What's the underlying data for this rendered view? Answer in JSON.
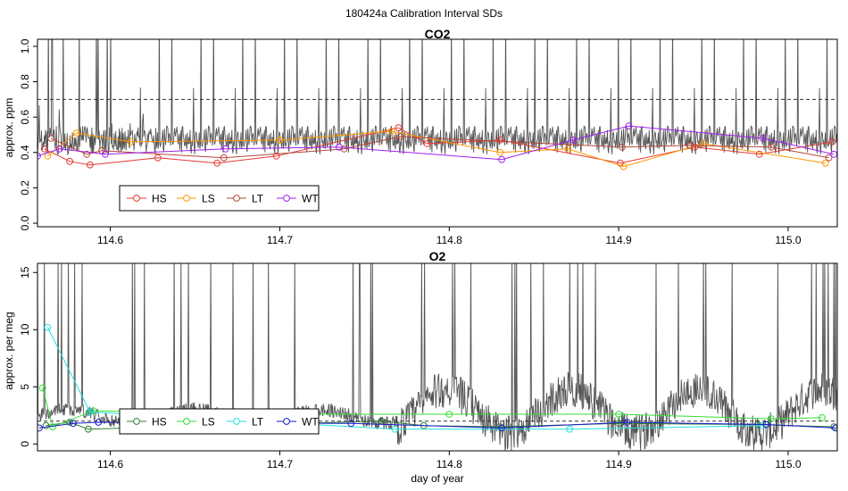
{
  "suptitle": "180424a   Calibration Interval SDs",
  "xlabel": "day of year",
  "colors": {
    "trace": "#555555",
    "ref_line": "#333333",
    "HS_co2": "#e53935",
    "LS_co2": "#ff9800",
    "LT_co2": "#b5473a",
    "WT_co2": "#a020f0",
    "HS_o2": "#2e7d32",
    "LS_o2": "#33dd33",
    "LT_o2": "#22e0e0",
    "WT_o2": "#1a1acc"
  },
  "chart_data": [
    {
      "type": "line",
      "title": "CO2",
      "xlabel": "",
      "ylabel": "approx. ppm",
      "xlim": [
        114.557,
        115.029
      ],
      "ylim": [
        -0.02,
        1.04
      ],
      "xticks": [
        "114.6",
        "114.7",
        "114.8",
        "114.9",
        "115.0"
      ],
      "yticks": [
        "0.0",
        "0.2",
        "0.4",
        "0.6",
        "0.8",
        "1.0"
      ],
      "ref_line": 0.7,
      "legend": "bottom-left",
      "series": [
        {
          "name": "HS",
          "x": [
            114.561,
            114.576,
            114.588,
            114.628,
            114.663,
            114.698,
            114.77,
            114.787,
            114.83,
            114.901,
            114.945,
            114.983,
            115.026
          ],
          "y": [
            0.42,
            0.35,
            0.33,
            0.37,
            0.34,
            0.38,
            0.54,
            0.45,
            0.47,
            0.34,
            0.43,
            0.39,
            0.46
          ]
        },
        {
          "name": "LS",
          "x": [
            114.563,
            114.58,
            114.612,
            114.7,
            114.766,
            114.83,
            114.87,
            114.903,
            114.95,
            115.022
          ],
          "y": [
            0.38,
            0.51,
            0.46,
            0.47,
            0.52,
            0.4,
            0.42,
            0.32,
            0.45,
            0.34
          ]
        },
        {
          "name": "LT",
          "x": [
            114.565,
            114.586,
            114.595,
            114.667,
            114.738,
            114.771,
            114.902,
            114.942,
            114.99,
            115.024
          ],
          "y": [
            0.48,
            0.39,
            0.41,
            0.37,
            0.42,
            0.49,
            0.43,
            0.44,
            0.43,
            0.37
          ]
        },
        {
          "name": "WT",
          "x": [
            114.557,
            114.57,
            114.597,
            114.668,
            114.735,
            114.831,
            114.873,
            114.906,
            114.985,
            115.027
          ],
          "y": [
            0.38,
            0.42,
            0.39,
            0.42,
            0.43,
            0.36,
            0.47,
            0.55,
            0.48,
            0.39
          ]
        }
      ]
    },
    {
      "type": "line",
      "title": "O2",
      "xlabel": "day of year",
      "ylabel": "approx. per meg",
      "xlim": [
        114.557,
        115.029
      ],
      "ylim": [
        -0.6,
        15.8
      ],
      "xticks": [
        "114.6",
        "114.7",
        "114.8",
        "114.9",
        "115.0"
      ],
      "yticks": [
        "0",
        "5",
        "10",
        "15"
      ],
      "ref_line": 2.0,
      "legend": "bottom-left",
      "series": [
        {
          "name": "HS",
          "x": [
            114.562,
            114.576,
            114.587,
            114.76,
            114.785,
            114.83,
            114.9,
            114.982,
            115.027
          ],
          "y": [
            1.6,
            1.9,
            1.3,
            2.0,
            1.6,
            1.5,
            1.8,
            1.7,
            1.5
          ]
        },
        {
          "name": "LS",
          "x": [
            114.56,
            114.566,
            114.59,
            114.7,
            114.8,
            114.9,
            114.99,
            115.02
          ],
          "y": [
            4.9,
            1.5,
            2.9,
            2.6,
            2.6,
            2.6,
            2.2,
            2.3
          ]
        },
        {
          "name": "LT",
          "x": [
            114.563,
            114.588,
            114.768,
            114.871,
            114.985
          ],
          "y": [
            10.2,
            2.8,
            1.3,
            1.3,
            1.6
          ]
        },
        {
          "name": "WT",
          "x": [
            114.558,
            114.578,
            114.593,
            114.742,
            114.831,
            114.905,
            114.987,
            115.028
          ],
          "y": [
            1.4,
            1.8,
            1.9,
            1.8,
            1.4,
            1.9,
            1.7,
            1.4
          ]
        }
      ]
    }
  ]
}
